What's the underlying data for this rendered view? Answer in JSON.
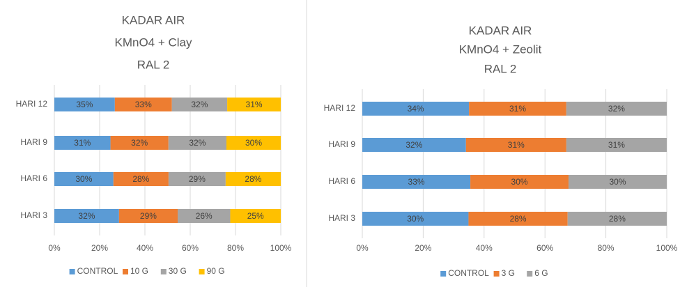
{
  "chart_data": [
    {
      "type": "bar",
      "orientation": "horizontal",
      "stacking": "percent",
      "title": [
        "KADAR AIR",
        "KMnO4 + Clay",
        "RAL 2"
      ],
      "categories": [
        "HARI 12",
        "HARI 9",
        "HARI 6",
        "HARI 3"
      ],
      "series": [
        {
          "name": "CONTROL",
          "color": "#5b9bd5",
          "values": [
            35,
            31,
            30,
            32
          ],
          "value_labels": [
            "35%",
            "31%",
            "30%",
            "32%"
          ]
        },
        {
          "name": "10 G",
          "color": "#ed7d31",
          "values": [
            33,
            32,
            28,
            29
          ],
          "value_labels": [
            "33%",
            "32%",
            "28%",
            "29%"
          ]
        },
        {
          "name": "30 G",
          "color": "#a5a5a5",
          "values": [
            32,
            32,
            29,
            26
          ],
          "value_labels": [
            "32%",
            "32%",
            "29%",
            "26%"
          ]
        },
        {
          "name": "90 G",
          "color": "#ffc000",
          "values": [
            31,
            30,
            28,
            25
          ],
          "value_labels": [
            "31%",
            "30%",
            "28%",
            "25%"
          ]
        }
      ],
      "xlim": [
        0,
        100
      ],
      "xticks": [
        {
          "value": 0,
          "label": "0%"
        },
        {
          "value": 20,
          "label": "20%"
        },
        {
          "value": 40,
          "label": "40%"
        },
        {
          "value": 60,
          "label": "60%"
        },
        {
          "value": 80,
          "label": "80%"
        },
        {
          "value": 100,
          "label": "100%"
        }
      ],
      "grid": true,
      "legend": "bottom"
    },
    {
      "type": "bar",
      "orientation": "horizontal",
      "stacking": "percent",
      "title": [
        "KADAR AIR",
        "KMnO4 + Zeolit",
        "RAL 2"
      ],
      "categories": [
        "HARI 12",
        "HARI 9",
        "HARI 6",
        "HARI 3"
      ],
      "series": [
        {
          "name": "CONTROL",
          "color": "#5b9bd5",
          "values": [
            34,
            32,
            33,
            30
          ],
          "value_labels": [
            "34%",
            "32%",
            "33%",
            "30%"
          ]
        },
        {
          "name": "3 G",
          "color": "#ed7d31",
          "values": [
            31,
            31,
            30,
            28
          ],
          "value_labels": [
            "31%",
            "31%",
            "30%",
            "28%"
          ]
        },
        {
          "name": "6 G",
          "color": "#a5a5a5",
          "values": [
            32,
            31,
            30,
            28
          ],
          "value_labels": [
            "32%",
            "31%",
            "30%",
            "28%"
          ]
        }
      ],
      "xlim": [
        0,
        100
      ],
      "xticks": [
        {
          "value": 0,
          "label": "0%"
        },
        {
          "value": 20,
          "label": "20%"
        },
        {
          "value": 40,
          "label": "40%"
        },
        {
          "value": 60,
          "label": "60%"
        },
        {
          "value": 80,
          "label": "80%"
        },
        {
          "value": 100,
          "label": "100%"
        }
      ],
      "grid": true,
      "legend": "bottom"
    }
  ]
}
